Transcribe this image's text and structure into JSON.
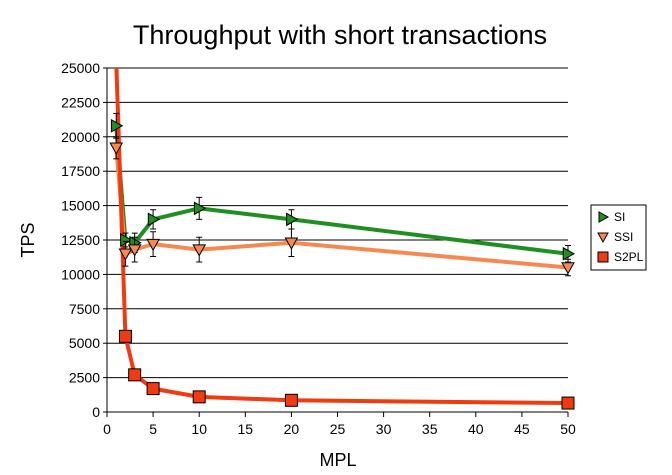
{
  "chart_data": {
    "type": "line",
    "title": "Throughput with short transactions",
    "xlabel": "MPL",
    "ylabel": "TPS",
    "xlim": [
      0,
      50
    ],
    "ylim": [
      0,
      25000
    ],
    "x_ticks": [
      0,
      5,
      10,
      15,
      20,
      25,
      30,
      35,
      40,
      45,
      50
    ],
    "y_ticks": [
      0,
      2500,
      5000,
      7500,
      10000,
      12500,
      15000,
      17500,
      20000,
      22500,
      25000
    ],
    "grid": "horizontal",
    "legend_position": "right",
    "series": [
      {
        "name": "SI",
        "color": "#1f8f1f",
        "marker": "triangle-right",
        "x": [
          1,
          2,
          3,
          5,
          10,
          20,
          50
        ],
        "y": [
          20800,
          12500,
          12300,
          14000,
          14800,
          14000,
          11500
        ],
        "err": [
          900,
          500,
          700,
          700,
          800,
          700,
          600
        ]
      },
      {
        "name": "SSI",
        "color": "#f58a50",
        "marker": "triangle-down",
        "x": [
          1,
          2,
          3,
          5,
          10,
          20,
          50
        ],
        "y": [
          19200,
          11500,
          11800,
          12200,
          11800,
          12300,
          10500
        ],
        "err": [
          800,
          900,
          900,
          900,
          900,
          1000,
          600
        ]
      },
      {
        "name": "S2PL",
        "color": "#f03a10",
        "marker": "square",
        "x": [
          1,
          2,
          3,
          5,
          10,
          20,
          50
        ],
        "y": [
          25500,
          5500,
          2700,
          1700,
          1100,
          850,
          650
        ],
        "err": [
          0,
          300,
          250,
          200,
          150,
          120,
          100
        ]
      }
    ]
  }
}
